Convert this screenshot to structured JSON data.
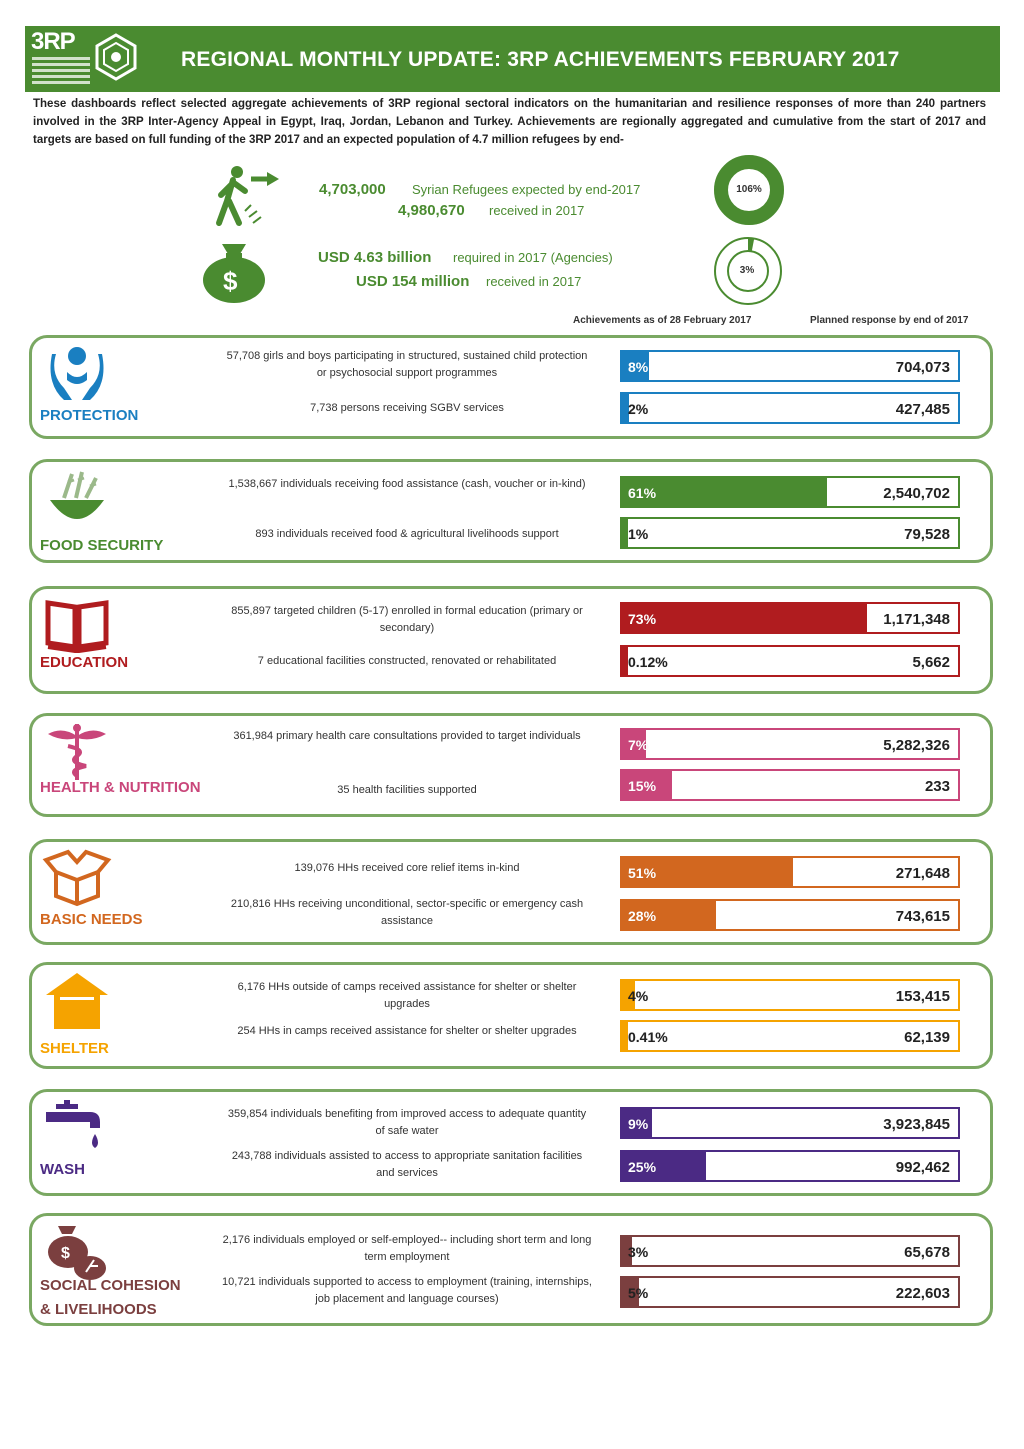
{
  "header": {
    "logo_text": "3RP",
    "title": "REGIONAL MONTHLY UPDATE: 3RP ACHIEVEMENTS FEBRUARY 2017"
  },
  "intro": "These dashboards reflect selected aggregate achievements of 3RP regional sectoral indicators on the humanitarian and resilience responses of more than 240 partners involved in the 3RP Inter-Agency Appeal in Egypt, Iraq, Jordan, Lebanon and Turkey. Achievements are regionally aggregated and cumulative from the start of 2017 and targets are based on full funding of the 3RP 2017 and an expected population of 4.7 million refugees by end-",
  "kpis": {
    "refugees_expected_num": "4,703,000",
    "refugees_expected_txt": "Syrian Refugees expected by end-2017",
    "refugees_received_num": "4,980,670",
    "refugees_received_txt": "received in 2017",
    "refugees_pct": "106%",
    "refugees_ratio": 1.0,
    "funding_required_num": "USD 4.63 billion",
    "funding_required_txt": "required in 2017 (Agencies)",
    "funding_received_num": "USD 154 million",
    "funding_received_txt": "received in 2017",
    "funding_pct": "3%",
    "funding_ratio": 0.03,
    "dollar_sign": "$",
    "icons": [
      "walking-person-icon",
      "money-bag-icon"
    ]
  },
  "columns": {
    "achievements": "Achievements as of 28 February 2017",
    "planned": "Planned response by end of 2017"
  },
  "sectors": [
    {
      "name": "PROTECTION",
      "icon": "hands-protection-icon",
      "color": "#1a7fc1",
      "indicators": [
        {
          "text": "57,708 girls and boys participating in structured, sustained child protection or psychosocial support programmes",
          "pct": "8%",
          "fraction": 0.08,
          "target": "704,073"
        },
        {
          "text": "7,738 persons receiving SGBV services",
          "pct": "2%",
          "fraction": 0.02,
          "target": "427,485"
        }
      ]
    },
    {
      "name": "FOOD SECURITY",
      "icon": "grain-bowl-icon",
      "color": "#4a8b30",
      "indicators": [
        {
          "text": "1,538,667 individuals receiving food assistance (cash, voucher or in-kind)",
          "pct": "61%",
          "fraction": 0.61,
          "target": "2,540,702"
        },
        {
          "text": "893 individuals received food & agricultural livelihoods support",
          "pct": "1%",
          "fraction": 0.01,
          "target": "79,528"
        }
      ]
    },
    {
      "name": "EDUCATION",
      "icon": "open-book-icon",
      "color": "#b01c1f",
      "indicators": [
        {
          "text": "855,897 targeted children (5-17) enrolled in formal education (primary or secondary)",
          "pct": "73%",
          "fraction": 0.73,
          "target": "1,171,348"
        },
        {
          "text": "7 educational facilities constructed, renovated or rehabilitated",
          "pct": "0.12%",
          "fraction": 0.0012,
          "target": "5,662"
        }
      ]
    },
    {
      "name": "HEALTH & NUTRITION",
      "icon": "caduceus-icon",
      "color": "#c9467a",
      "indicators": [
        {
          "text": "361,984 primary health care consultations provided to target individuals",
          "pct": "7%",
          "fraction": 0.07,
          "target": "5,282,326"
        },
        {
          "text": "35 health facilities supported",
          "pct": "15%",
          "fraction": 0.15,
          "target": "233"
        }
      ]
    },
    {
      "name": "BASIC NEEDS",
      "icon": "open-box-icon",
      "color": "#d2671f",
      "indicators": [
        {
          "text": "139,076 HHs received core relief items in-kind",
          "pct": "51%",
          "fraction": 0.51,
          "target": "271,648"
        },
        {
          "text": "210,816 HHs receiving unconditional, sector-specific or emergency cash assistance",
          "pct": "28%",
          "fraction": 0.28,
          "target": "743,615"
        }
      ]
    },
    {
      "name": "SHELTER",
      "icon": "house-icon",
      "color": "#f5a300",
      "indicators": [
        {
          "text": "6,176 HHs outside of camps received assistance for shelter or shelter upgrades",
          "pct": "4%",
          "fraction": 0.04,
          "target": "153,415"
        },
        {
          "text": "254 HHs in camps received assistance for shelter or shelter upgrades",
          "pct": "0.41%",
          "fraction": 0.0041,
          "target": "62,139"
        }
      ]
    },
    {
      "name": "WASH",
      "icon": "water-tap-icon",
      "color": "#4b2a84",
      "indicators": [
        {
          "text": "359,854 individuals benefiting from improved access to adequate quantity of safe water",
          "pct": "9%",
          "fraction": 0.09,
          "target": "3,923,845"
        },
        {
          "text": "243,788 individuals assisted to access to appropriate sanitation facilities and services",
          "pct": "25%",
          "fraction": 0.25,
          "target": "992,462"
        }
      ]
    },
    {
      "name": "SOCIAL COHESION",
      "name2": "& LIVELIHOODS",
      "icon": "money-bag-plant-icon",
      "color": "#7b3f3f",
      "indicators": [
        {
          "text": "2,176 individuals employed or self-employed-- including short term and long term employment",
          "pct": "3%",
          "fraction": 0.03,
          "target": "65,678"
        },
        {
          "text": "10,721 individuals supported to access to employment (training, internships, job placement and language courses)",
          "pct": "5%",
          "fraction": 0.05,
          "target": "222,603"
        }
      ]
    }
  ]
}
